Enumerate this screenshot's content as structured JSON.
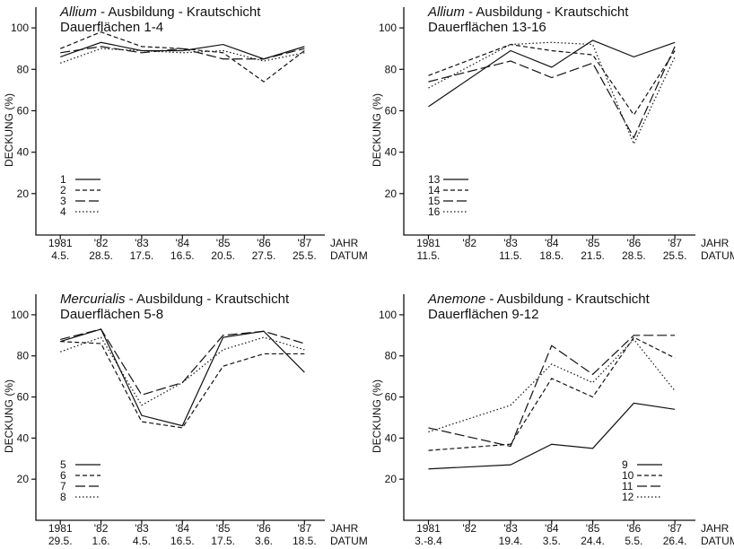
{
  "chart_data": [
    {
      "type": "line",
      "title_italic": "Allium",
      "title": " - Ausbildung - Krautschicht",
      "subtitle": "Dauerflächen 1-4",
      "ylabel": "DECKUNG (%)",
      "xlabel": "JAHR",
      "xlabel2": "DATUM",
      "xlim": [
        1980.4,
        1987.5
      ],
      "ylim": [
        0,
        110
      ],
      "yticks": [
        20,
        40,
        60,
        80,
        100
      ],
      "xticks": [
        {
          "value": 1981,
          "label": "1981"
        },
        {
          "value": 1982,
          "label": "'82"
        },
        {
          "value": 1983,
          "label": "'83"
        },
        {
          "value": 1984,
          "label": "'84"
        },
        {
          "value": 1985,
          "label": "'85"
        },
        {
          "value": 1986,
          "label": "'86"
        },
        {
          "value": 1987,
          "label": "'87"
        }
      ],
      "dates": [
        "4.5.",
        "28.5.",
        "17.5.",
        "16.5.",
        "20.5.",
        "27.5.",
        "25.5."
      ],
      "legend": "lower left",
      "series": [
        {
          "name": "1",
          "color": "#111111",
          "dash": "solid",
          "x": [
            1981,
            1982,
            1983,
            1984,
            1985,
            1986,
            1987
          ],
          "values": [
            86,
            93,
            89,
            89,
            92,
            85,
            91
          ]
        },
        {
          "name": "2",
          "color": "#111111",
          "dash": "dashed",
          "x": [
            1981,
            1982,
            1983,
            1984,
            1985,
            1986,
            1987
          ],
          "values": [
            90,
            98,
            91,
            90,
            88,
            74,
            89
          ]
        },
        {
          "name": "3",
          "color": "#111111",
          "dash": "longdash",
          "x": [
            1981,
            1982,
            1983,
            1984,
            1985,
            1986,
            1987
          ],
          "values": [
            88,
            91,
            88,
            90,
            85,
            85,
            90
          ]
        },
        {
          "name": "4",
          "color": "#111111",
          "dash": "dotted",
          "x": [
            1981,
            1982,
            1983,
            1984,
            1985,
            1986,
            1987
          ],
          "values": [
            83,
            90,
            89,
            88,
            89,
            84,
            88
          ]
        }
      ]
    },
    {
      "type": "line",
      "title_italic": "Allium",
      "title": " - Ausbildung - Krautschicht",
      "subtitle": "Dauerflächen 13-16",
      "ylabel": "DECKUNG (%)",
      "xlabel": "JAHR",
      "xlabel2": "DATUM",
      "xlim": [
        1980.4,
        1987.5
      ],
      "ylim": [
        0,
        110
      ],
      "yticks": [
        20,
        40,
        60,
        80,
        100
      ],
      "xticks": [
        {
          "value": 1981,
          "label": "1981"
        },
        {
          "value": 1982,
          "label": "'82"
        },
        {
          "value": 1983,
          "label": "'83"
        },
        {
          "value": 1984,
          "label": "'84"
        },
        {
          "value": 1985,
          "label": "'85"
        },
        {
          "value": 1986,
          "label": "'86"
        },
        {
          "value": 1987,
          "label": "'87"
        }
      ],
      "dates": [
        "11.5.",
        null,
        "11.5.",
        "18.5.",
        "21.5.",
        "28.5.",
        "25.5."
      ],
      "legend": "lower left",
      "series": [
        {
          "name": "13",
          "color": "#111111",
          "dash": "solid",
          "x": [
            1981,
            1983,
            1984,
            1985,
            1986,
            1987
          ],
          "values": [
            62,
            89,
            81,
            94,
            86,
            93
          ]
        },
        {
          "name": "14",
          "color": "#111111",
          "dash": "dashed",
          "x": [
            1981,
            1983,
            1984,
            1985,
            1986,
            1987
          ],
          "values": [
            77,
            92,
            89,
            87,
            58,
            89
          ]
        },
        {
          "name": "15",
          "color": "#111111",
          "dash": "longdash",
          "x": [
            1981,
            1983,
            1984,
            1985,
            1986,
            1987
          ],
          "values": [
            74,
            84,
            76,
            83,
            47,
            91
          ]
        },
        {
          "name": "16",
          "color": "#111111",
          "dash": "dotted",
          "x": [
            1981,
            1983,
            1984,
            1985,
            1986,
            1987
          ],
          "values": [
            71,
            92,
            93,
            92,
            44,
            86
          ]
        }
      ]
    },
    {
      "type": "line",
      "title_italic": "Mercurialis",
      "title": " - Ausbildung - Krautschicht",
      "subtitle": "Dauerflächen 5-8",
      "ylabel": "DECKUNG (%)",
      "xlabel": "JAHR",
      "xlabel2": "DATUM",
      "xlim": [
        1980.4,
        1987.5
      ],
      "ylim": [
        0,
        110
      ],
      "yticks": [
        20,
        40,
        60,
        80,
        100
      ],
      "xticks": [
        {
          "value": 1981,
          "label": "1981"
        },
        {
          "value": 1982,
          "label": "'82"
        },
        {
          "value": 1983,
          "label": "'83"
        },
        {
          "value": 1984,
          "label": "'84"
        },
        {
          "value": 1985,
          "label": "'85"
        },
        {
          "value": 1986,
          "label": "'86"
        },
        {
          "value": 1987,
          "label": "'87"
        }
      ],
      "dates": [
        "29.5.",
        "1.6.",
        "4.5.",
        "16.5.",
        "17.5.",
        "3.6.",
        "18.5."
      ],
      "legend": "lower left",
      "series": [
        {
          "name": "5",
          "color": "#111111",
          "dash": "solid",
          "x": [
            1981,
            1982,
            1983,
            1984,
            1985,
            1986,
            1987
          ],
          "values": [
            87,
            93,
            51,
            46,
            89,
            92,
            72
          ]
        },
        {
          "name": "6",
          "color": "#111111",
          "dash": "dashed",
          "x": [
            1981,
            1982,
            1983,
            1984,
            1985,
            1986,
            1987
          ],
          "values": [
            87,
            86,
            48,
            45,
            75,
            81,
            81
          ]
        },
        {
          "name": "7",
          "color": "#111111",
          "dash": "longdash",
          "x": [
            1981,
            1982,
            1983,
            1984,
            1985,
            1986,
            1987
          ],
          "values": [
            88,
            93,
            61,
            67,
            90,
            92,
            86
          ]
        },
        {
          "name": "8",
          "color": "#111111",
          "dash": "dotted",
          "x": [
            1981,
            1982,
            1983,
            1984,
            1985,
            1986,
            1987
          ],
          "values": [
            82,
            89,
            56,
            67,
            83,
            89,
            83
          ]
        }
      ]
    },
    {
      "type": "line",
      "title_italic": "Anemone",
      "title": " - Ausbildung - Krautschicht",
      "subtitle": "Dauerflächen 9-12",
      "ylabel": "DECKUNG (%)",
      "xlabel": "JAHR",
      "xlabel2": "DATUM",
      "xlim": [
        1980.4,
        1987.5
      ],
      "ylim": [
        0,
        110
      ],
      "yticks": [
        20,
        40,
        60,
        80,
        100
      ],
      "xticks": [
        {
          "value": 1981,
          "label": "1981"
        },
        {
          "value": 1982,
          "label": "'82"
        },
        {
          "value": 1983,
          "label": "'83"
        },
        {
          "value": 1984,
          "label": "'84"
        },
        {
          "value": 1985,
          "label": "'85"
        },
        {
          "value": 1986,
          "label": "'86"
        },
        {
          "value": 1987,
          "label": "'87"
        }
      ],
      "dates": [
        "3.-8.4",
        null,
        "19.4.",
        "3.5.",
        "24.4.",
        "5.5.",
        "26.4."
      ],
      "legend": "lower right",
      "series": [
        {
          "name": "9",
          "color": "#111111",
          "dash": "solid",
          "x": [
            1981,
            1983,
            1984,
            1985,
            1986,
            1987
          ],
          "values": [
            25,
            27,
            37,
            35,
            57,
            54
          ]
        },
        {
          "name": "10",
          "color": "#111111",
          "dash": "dashed",
          "x": [
            1981,
            1983,
            1984,
            1985,
            1986,
            1987
          ],
          "values": [
            34,
            37,
            69,
            60,
            89,
            79
          ]
        },
        {
          "name": "11",
          "color": "#111111",
          "dash": "longdash",
          "x": [
            1981,
            1983,
            1984,
            1985,
            1986,
            1987
          ],
          "values": [
            45,
            36,
            85,
            71,
            90,
            90
          ]
        },
        {
          "name": "12",
          "color": "#111111",
          "dash": "dotted",
          "x": [
            1981,
            1983,
            1984,
            1985,
            1986,
            1987
          ],
          "values": [
            43,
            56,
            76,
            67,
            88,
            63
          ]
        }
      ]
    }
  ]
}
